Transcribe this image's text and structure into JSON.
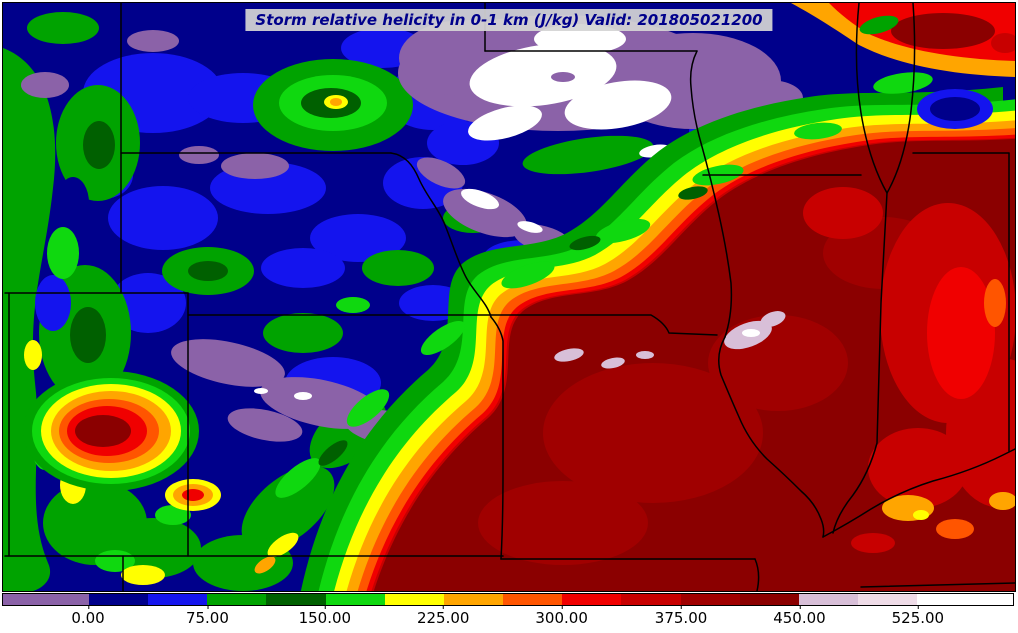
{
  "title": "Storm relative helicity in 0-1 km (J/kg) Valid: 201805021200",
  "colorbar": {
    "tick_labels": [
      "0.00",
      "75.00",
      "150.00",
      "225.00",
      "300.00",
      "375.00",
      "450.00",
      "525.00"
    ],
    "tick_positions_pct": [
      8.5,
      20.3,
      31.9,
      43.6,
      55.3,
      67.1,
      78.8,
      90.5
    ],
    "segments": [
      {
        "color": "#8B62A8",
        "width_pct": 8.5
      },
      {
        "color": "#00008B",
        "width_pct": 5.86
      },
      {
        "color": "#1414EE",
        "width_pct": 5.86
      },
      {
        "color": "#00A300",
        "width_pct": 5.86
      },
      {
        "color": "#006000",
        "width_pct": 5.86
      },
      {
        "color": "#0FD80F",
        "width_pct": 5.86
      },
      {
        "color": "#FFFF00",
        "width_pct": 5.86
      },
      {
        "color": "#FFA500",
        "width_pct": 5.86
      },
      {
        "color": "#FF5500",
        "width_pct": 5.86
      },
      {
        "color": "#F00000",
        "width_pct": 5.86
      },
      {
        "color": "#C80000",
        "width_pct": 5.86
      },
      {
        "color": "#A00000",
        "width_pct": 5.86
      },
      {
        "color": "#8B0000",
        "width_pct": 5.86
      },
      {
        "color": "#D8BFD8",
        "width_pct": 5.86
      },
      {
        "color": "#EFDCE8",
        "width_pct": 5.86
      },
      {
        "color": "#FFFFFF",
        "width_pct": 9.46
      }
    ]
  }
}
